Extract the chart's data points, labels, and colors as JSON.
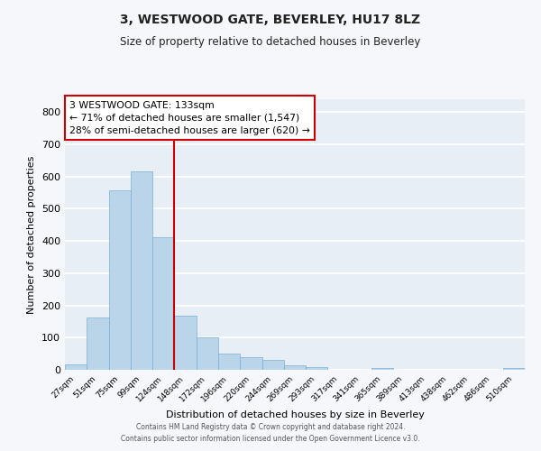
{
  "title": "3, WESTWOOD GATE, BEVERLEY, HU17 8LZ",
  "subtitle": "Size of property relative to detached houses in Beverley",
  "xlabel": "Distribution of detached houses by size in Beverley",
  "ylabel": "Number of detached properties",
  "categories": [
    "27sqm",
    "51sqm",
    "75sqm",
    "99sqm",
    "124sqm",
    "148sqm",
    "172sqm",
    "196sqm",
    "220sqm",
    "244sqm",
    "269sqm",
    "293sqm",
    "317sqm",
    "341sqm",
    "365sqm",
    "389sqm",
    "413sqm",
    "438sqm",
    "462sqm",
    "486sqm",
    "510sqm"
  ],
  "values": [
    18,
    163,
    558,
    615,
    413,
    168,
    101,
    50,
    38,
    30,
    14,
    8,
    0,
    0,
    5,
    0,
    0,
    0,
    0,
    0,
    7
  ],
  "bar_color": "#bad4ea",
  "bar_edge_color": "#7aafd4",
  "red_line_x": 4.5,
  "annotation_title": "3 WESTWOOD GATE: 133sqm",
  "annotation_line1": "← 71% of detached houses are smaller (1,547)",
  "annotation_line2": "28% of semi-detached houses are larger (620) →",
  "box_color": "#cc0000",
  "ylim": [
    0,
    840
  ],
  "yticks": [
    0,
    100,
    200,
    300,
    400,
    500,
    600,
    700,
    800
  ],
  "background_color": "#e8eef5",
  "fig_background": "#f5f7fa",
  "grid_color": "#ffffff",
  "footer_line1": "Contains HM Land Registry data © Crown copyright and database right 2024.",
  "footer_line2": "Contains public sector information licensed under the Open Government Licence v3.0."
}
